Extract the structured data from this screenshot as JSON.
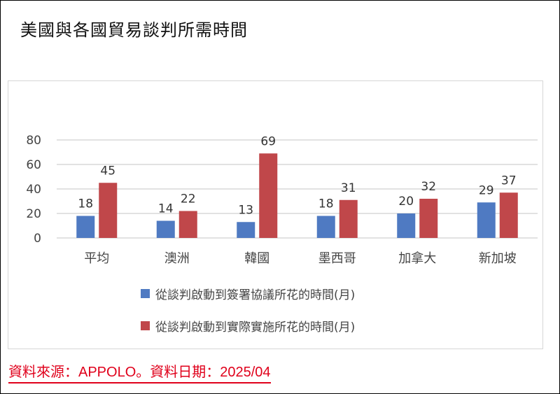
{
  "title": "美國與各國貿易談判所需時間",
  "source": "資料來源：APPOLO。資料日期：2025/04",
  "colors": {
    "series1": "#4f7ac2",
    "series2": "#c0474a",
    "grid": "#d9d9d9"
  },
  "chart_data": {
    "type": "bar",
    "categories": [
      "平均",
      "澳洲",
      "韓國",
      "墨西哥",
      "加拿大",
      "新加坡"
    ],
    "series": [
      {
        "name": "從談判啟動到簽署協議所花的時間(月)",
        "values": [
          18,
          14,
          13,
          18,
          20,
          29
        ]
      },
      {
        "name": "從談判啟動到實際實施所花的時間(月)",
        "values": [
          45,
          22,
          69,
          31,
          32,
          37
        ]
      }
    ],
    "yticks": [
      0,
      20,
      40,
      60,
      80
    ],
    "ylim": [
      0,
      80
    ],
    "grid": true,
    "legend": "bottom",
    "data_labels": true
  }
}
